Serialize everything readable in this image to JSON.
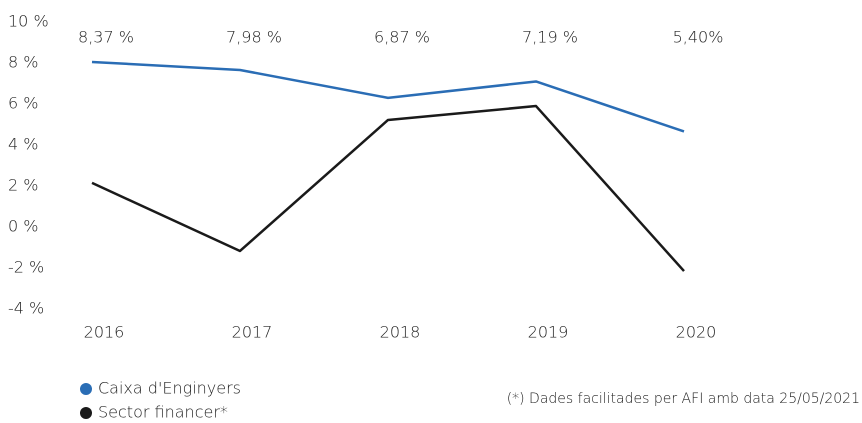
{
  "chart_data": {
    "type": "line",
    "categories": [
      "2016",
      "2017",
      "2018",
      "2019",
      "2020"
    ],
    "series": [
      {
        "name": "Caixa d'Enginyers",
        "color": "#2a6db5",
        "values": [
          8.05,
          7.66,
          6.3,
          7.1,
          4.66
        ]
      },
      {
        "name": "Sector financer*",
        "color": "#1a1a1a",
        "values": [
          2.15,
          -1.17,
          5.22,
          5.9,
          -2.15
        ]
      }
    ],
    "annotations": [
      "8,37 %",
      "7,98 %",
      "6,87 %",
      "7,19 %",
      "5,40%"
    ],
    "ylim": [
      -4,
      10
    ],
    "yticks": [
      {
        "value": 10,
        "label": "10 %"
      },
      {
        "value": 8,
        "label": "8 %"
      },
      {
        "value": 6,
        "label": "6 %"
      },
      {
        "value": 4,
        "label": "4 %"
      },
      {
        "value": 2,
        "label": "2 %"
      },
      {
        "value": 0,
        "label": "0 %"
      },
      {
        "value": -2,
        "label": "-2 %"
      },
      {
        "value": -4,
        "label": "-4 %"
      }
    ],
    "note": "(*) Dades facilitades per AFI amb data 25/05/2021",
    "grid": false
  }
}
